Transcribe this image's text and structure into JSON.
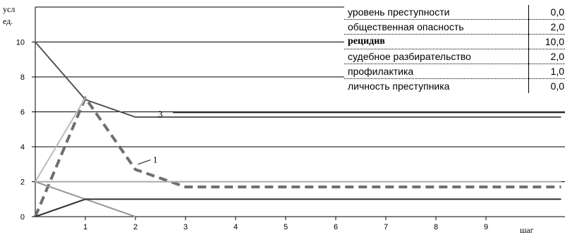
{
  "chart_data": {
    "type": "line",
    "ylabel": "усл ед.",
    "ylabel_lines": [
      "усл",
      "ед."
    ],
    "xlabel": "шаг",
    "xlim": [
      0,
      10
    ],
    "ylim": [
      0,
      12
    ],
    "x_ticks": [
      1,
      2,
      3,
      4,
      5,
      6,
      7,
      8,
      9
    ],
    "y_ticks": [
      0,
      2,
      4,
      6,
      8,
      10
    ],
    "grid": "horizontal",
    "series": [
      {
        "x": [
          0,
          1,
          2,
          3,
          4,
          5,
          6,
          7,
          8,
          9,
          10.5
        ],
        "values": [
          0,
          6.8,
          2.7,
          1.7,
          1.7,
          1.7,
          1.7,
          1.7,
          1.7,
          1.7,
          1.7
        ],
        "color": "#6e6e6e",
        "style": "dashed"
      },
      {
        "x": [
          0,
          1,
          2,
          10.5
        ],
        "values": [
          10,
          6.7,
          5.7,
          5.7
        ],
        "color": "#555555",
        "style": "solid"
      },
      {
        "x": [
          0,
          1,
          2
        ],
        "values": [
          2,
          1,
          0
        ],
        "color": "#999999",
        "style": "solid"
      },
      {
        "x": [
          0,
          1,
          10.5
        ],
        "values": [
          0,
          1,
          1
        ],
        "color": "#333333",
        "style": "solid"
      },
      {
        "x": [
          0,
          10.5
        ],
        "values": [
          2,
          2
        ],
        "color": "#aaaaaa",
        "style": "solid"
      },
      {
        "x": [
          0,
          1
        ],
        "values": [
          2,
          6.8
        ],
        "color": "#bbbbbb",
        "style": "solid"
      }
    ],
    "annotations": [
      {
        "text": "1",
        "x": 2.35,
        "y": 3.25
      },
      {
        "text": "3",
        "x": 2.45,
        "y": 5.85
      }
    ],
    "legend": {
      "placement": "top-right",
      "rows": [
        {
          "label": "уровень преступности",
          "value": "0,0",
          "bold": false
        },
        {
          "label": "общественная опасность",
          "value": "2,0",
          "bold": false
        },
        {
          "label": "рецидив",
          "value": "10,0",
          "bold": true
        },
        {
          "label": "судебное разбирательство",
          "value": "2,0",
          "bold": false
        },
        {
          "label": "профилактика",
          "value": "1,0",
          "bold": false
        },
        {
          "label": "личность преступника",
          "value": "0,0",
          "bold": false
        }
      ]
    }
  }
}
